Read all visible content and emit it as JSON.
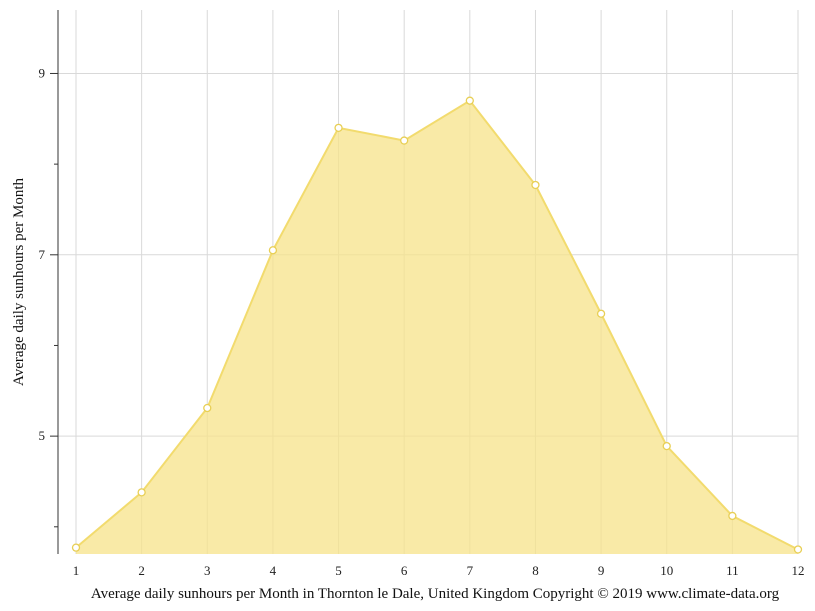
{
  "chart_data": {
    "type": "area",
    "title": "",
    "xlabel": "Average daily sunhours per Month in Thornton le Dale, United Kingdom Copyright © 2019 www.climate-data.org",
    "ylabel": "Average daily sunhours per Month",
    "x": [
      1,
      2,
      3,
      4,
      5,
      6,
      7,
      8,
      9,
      10,
      11,
      12
    ],
    "x_tick_labels": [
      "1",
      "2",
      "3",
      "4",
      "5",
      "6",
      "7",
      "8",
      "9",
      "10",
      "11",
      "12"
    ],
    "y_tick_labels": [
      "5",
      "7",
      "9"
    ],
    "y_tick_values": [
      5,
      7,
      9
    ],
    "series": [
      {
        "values": [
          3.77,
          4.38,
          5.31,
          7.05,
          8.4,
          8.26,
          8.7,
          7.77,
          6.35,
          4.89,
          4.12,
          3.75
        ]
      }
    ],
    "xlim": [
      1,
      12
    ],
    "ylim": [
      3.7,
      9.7
    ],
    "grid": true,
    "colors": {
      "fill": "#f7e38a",
      "line": "#f2db6e",
      "grid": "#d9d9d9",
      "axis": "#333333"
    }
  }
}
